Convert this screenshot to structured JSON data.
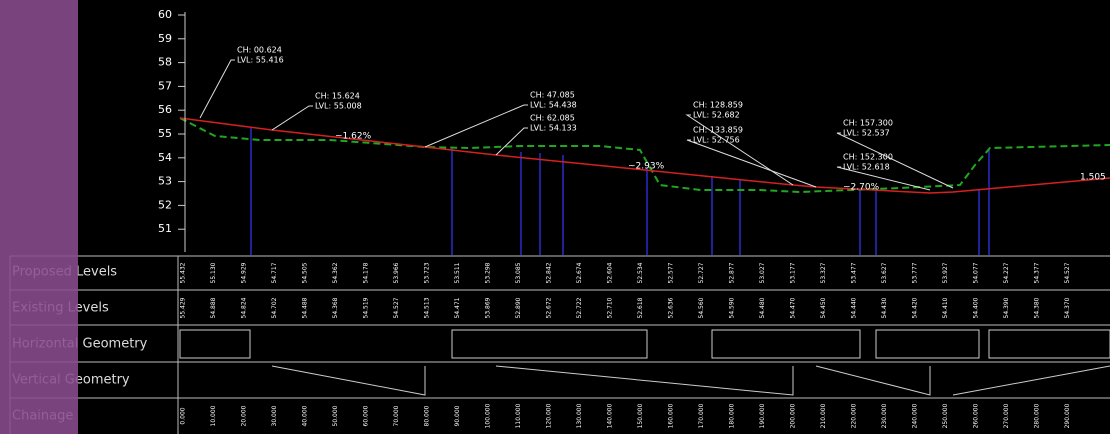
{
  "axis": {
    "ticks": [
      "60",
      "59",
      "58",
      "57",
      "56",
      "55",
      "54",
      "53",
      "52",
      "51"
    ]
  },
  "callouts": [
    {
      "ch": "CH: 00.624",
      "lvl": "LVL: 55.416"
    },
    {
      "ch": "CH: 15.624",
      "lvl": "LVL: 55.008"
    },
    {
      "ch": "CH: 47.085",
      "lvl": "LVL: 54.438"
    },
    {
      "ch": "CH: 62.085",
      "lvl": "LVL: 54.133"
    },
    {
      "ch": "CH: 128.859",
      "lvl": "LVL: 52.682"
    },
    {
      "ch": "CH: 133.859",
      "lvl": "LVL: 52.756"
    },
    {
      "ch": "CH: 157.300",
      "lvl": "LVL: 52.537"
    },
    {
      "ch": "CH: 152.300",
      "lvl": "LVL: 52.618"
    }
  ],
  "grades": [
    "~1.62%",
    "~2.93%",
    "~2.70%",
    "1.505"
  ],
  "bands": [
    "Proposed Levels",
    "Existing Levels",
    "Horizontal Geometry",
    "Vertical Geometry",
    "Chainage"
  ],
  "proposed_levels": [
    "55.432",
    "55.130",
    "54.929",
    "54.717",
    "54.505",
    "54.362",
    "54.178",
    "53.966",
    "53.723",
    "53.511",
    "53.298",
    "53.085",
    "52.842",
    "52.674",
    "52.604",
    "52.534",
    "52.577",
    "52.727",
    "52.877",
    "53.027",
    "53.177",
    "53.327",
    "53.477",
    "53.627",
    "53.777",
    "53.927",
    "54.077",
    "54.227",
    "54.377",
    "54.527"
  ],
  "existing_levels": [
    "55.429",
    "54.888",
    "54.824",
    "54.702",
    "54.488",
    "54.368",
    "54.519",
    "54.527",
    "54.513",
    "54.471",
    "53.869",
    "52.890",
    "52.672",
    "52.722",
    "52.710",
    "52.618",
    "52.636",
    "54.560",
    "54.590",
    "54.480",
    "54.470",
    "54.450",
    "54.440",
    "54.430",
    "54.420",
    "54.410",
    "54.400",
    "54.390",
    "54.380",
    "54.370"
  ],
  "chainages": [
    "0.000",
    "10.000",
    "20.000",
    "30.000",
    "40.000",
    "50.000",
    "60.000",
    "70.000",
    "80.000",
    "90.000",
    "100.000",
    "110.000",
    "120.000",
    "130.000",
    "140.000",
    "150.000",
    "160.000",
    "170.000",
    "180.000",
    "190.000",
    "200.000",
    "210.000",
    "220.000",
    "230.000",
    "240.000",
    "250.000",
    "260.000",
    "270.000",
    "280.000",
    "290.000"
  ]
}
